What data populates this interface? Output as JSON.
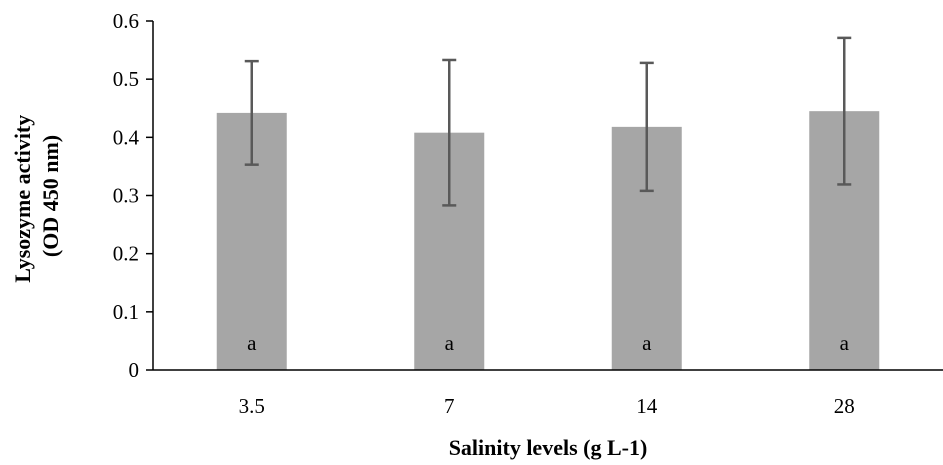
{
  "chart_data": {
    "type": "bar",
    "title": "",
    "xlabel": "Salinity levels (g L-1)",
    "ylabel_lines": [
      "Lysozyme activity",
      "(OD 450 nm)"
    ],
    "categories": [
      "3.5",
      "7",
      "14",
      "28"
    ],
    "values": [
      0.442,
      0.408,
      0.418,
      0.445
    ],
    "error": [
      0.089,
      0.125,
      0.11,
      0.126
    ],
    "data_labels": [
      "a",
      "a",
      "a",
      "a"
    ],
    "ylim": [
      0,
      0.6
    ],
    "yticks": [
      0,
      0.1,
      0.2,
      0.3,
      0.4,
      0.5,
      0.6
    ],
    "ytick_labels": [
      "0",
      "0.1",
      "0.2",
      "0.3",
      "0.4",
      "0.5",
      "0.6"
    ],
    "grid": false,
    "legend": "none",
    "colors": {
      "bar": "#a6a6a6",
      "error_bar": "#595959",
      "axis": "#000000"
    }
  }
}
